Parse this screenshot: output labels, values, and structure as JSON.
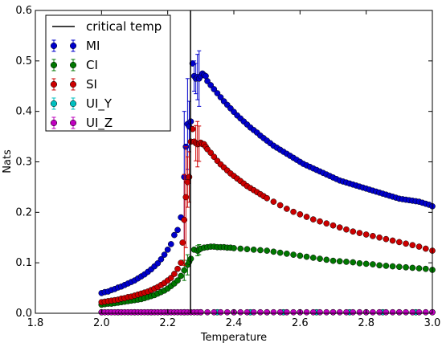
{
  "chart_data": {
    "type": "scatter",
    "title": "",
    "xlabel": "Temperature",
    "ylabel": "Nats",
    "xlim": [
      1.8,
      3.0
    ],
    "ylim": [
      0.0,
      0.6
    ],
    "xticks": [
      "1.8",
      "2.0",
      "2.2",
      "2.4",
      "2.6",
      "2.8",
      "3.0"
    ],
    "yticks": [
      "0.0",
      "0.1",
      "0.2",
      "0.3",
      "0.4",
      "0.5",
      "0.6"
    ],
    "legend_position": "top-left",
    "grid": false,
    "critical_line": {
      "name": "critical temp",
      "x": 2.269,
      "color": "#000000"
    },
    "series": [
      {
        "name": "MI",
        "color": "#0000cc",
        "marker": "circle",
        "errorbars": true,
        "x": [
          2.0,
          2.01,
          2.02,
          2.03,
          2.04,
          2.05,
          2.06,
          2.07,
          2.08,
          2.09,
          2.1,
          2.11,
          2.12,
          2.13,
          2.14,
          2.15,
          2.16,
          2.17,
          2.18,
          2.19,
          2.2,
          2.21,
          2.22,
          2.23,
          2.24,
          2.25,
          2.255,
          2.26,
          2.265,
          2.27,
          2.275,
          2.28,
          2.285,
          2.29,
          2.295,
          2.3,
          2.305,
          2.31,
          2.315,
          2.32,
          2.33,
          2.34,
          2.35,
          2.36,
          2.37,
          2.38,
          2.39,
          2.4,
          2.41,
          2.42,
          2.43,
          2.44,
          2.45,
          2.46,
          2.47,
          2.48,
          2.49,
          2.5,
          2.51,
          2.52,
          2.53,
          2.54,
          2.55,
          2.56,
          2.57,
          2.58,
          2.59,
          2.6,
          2.61,
          2.62,
          2.63,
          2.64,
          2.65,
          2.66,
          2.67,
          2.68,
          2.69,
          2.7,
          2.71,
          2.72,
          2.73,
          2.74,
          2.75,
          2.76,
          2.77,
          2.78,
          2.79,
          2.8,
          2.81,
          2.82,
          2.83,
          2.84,
          2.85,
          2.86,
          2.87,
          2.88,
          2.89,
          2.9,
          2.91,
          2.92,
          2.93,
          2.94,
          2.95,
          2.96,
          2.97,
          2.98,
          2.99,
          3.0
        ],
        "y": [
          0.04,
          0.042,
          0.043,
          0.046,
          0.048,
          0.051,
          0.053,
          0.056,
          0.059,
          0.062,
          0.065,
          0.069,
          0.073,
          0.077,
          0.082,
          0.087,
          0.093,
          0.099,
          0.107,
          0.116,
          0.126,
          0.137,
          0.155,
          0.165,
          0.19,
          0.27,
          0.33,
          0.375,
          0.37,
          0.38,
          0.495,
          0.47,
          0.465,
          0.468,
          0.465,
          0.47,
          0.475,
          0.472,
          0.47,
          0.46,
          0.452,
          0.444,
          0.436,
          0.428,
          0.42,
          0.413,
          0.406,
          0.399,
          0.392,
          0.386,
          0.38,
          0.374,
          0.368,
          0.363,
          0.358,
          0.352,
          0.347,
          0.342,
          0.337,
          0.332,
          0.328,
          0.324,
          0.32,
          0.316,
          0.312,
          0.308,
          0.304,
          0.3,
          0.296,
          0.293,
          0.29,
          0.287,
          0.284,
          0.281,
          0.278,
          0.275,
          0.272,
          0.269,
          0.266,
          0.263,
          0.261,
          0.259,
          0.257,
          0.255,
          0.253,
          0.251,
          0.249,
          0.247,
          0.245,
          0.243,
          0.241,
          0.239,
          0.237,
          0.235,
          0.233,
          0.231,
          0.229,
          0.227,
          0.226,
          0.225,
          0.224,
          0.223,
          0.222,
          0.221,
          0.219,
          0.217,
          0.215,
          0.212
        ],
        "err": {
          "2.25": 0.13,
          "2.26": 0.09,
          "2.265": 0.05,
          "2.28": 0.03,
          "2.285": 0.03,
          "2.29": 0.045,
          "2.295": 0.055,
          "2.30": 0.03
        }
      },
      {
        "name": "CI",
        "color": "#007700",
        "marker": "circle",
        "errorbars": true,
        "x": [
          2.0,
          2.01,
          2.02,
          2.03,
          2.04,
          2.05,
          2.06,
          2.07,
          2.08,
          2.09,
          2.1,
          2.11,
          2.12,
          2.13,
          2.14,
          2.15,
          2.16,
          2.17,
          2.18,
          2.19,
          2.2,
          2.21,
          2.22,
          2.23,
          2.24,
          2.25,
          2.26,
          2.265,
          2.27,
          2.28,
          2.29,
          2.295,
          2.3,
          2.31,
          2.32,
          2.33,
          2.34,
          2.35,
          2.36,
          2.37,
          2.38,
          2.39,
          2.4,
          2.42,
          2.44,
          2.46,
          2.48,
          2.5,
          2.52,
          2.54,
          2.56,
          2.58,
          2.6,
          2.62,
          2.64,
          2.66,
          2.68,
          2.7,
          2.72,
          2.74,
          2.76,
          2.78,
          2.8,
          2.82,
          2.84,
          2.86,
          2.88,
          2.9,
          2.92,
          2.94,
          2.96,
          2.98,
          3.0
        ],
        "y": [
          0.017,
          0.018,
          0.019,
          0.019,
          0.02,
          0.021,
          0.022,
          0.023,
          0.024,
          0.025,
          0.026,
          0.027,
          0.028,
          0.03,
          0.032,
          0.034,
          0.036,
          0.039,
          0.042,
          0.045,
          0.049,
          0.054,
          0.059,
          0.065,
          0.074,
          0.085,
          0.096,
          0.102,
          0.108,
          0.126,
          0.124,
          0.126,
          0.128,
          0.13,
          0.131,
          0.132,
          0.132,
          0.131,
          0.131,
          0.131,
          0.13,
          0.13,
          0.129,
          0.128,
          0.127,
          0.126,
          0.125,
          0.124,
          0.122,
          0.12,
          0.118,
          0.116,
          0.114,
          0.112,
          0.11,
          0.108,
          0.106,
          0.104,
          0.103,
          0.102,
          0.101,
          0.099,
          0.098,
          0.097,
          0.095,
          0.094,
          0.093,
          0.092,
          0.091,
          0.09,
          0.089,
          0.088,
          0.086
        ],
        "err": {
          "2.25": 0.02,
          "2.26": 0.02,
          "2.29": 0.01,
          "2.295": 0.01
        }
      },
      {
        "name": "SI",
        "color": "#cc0000",
        "marker": "circle",
        "errorbars": true,
        "x": [
          2.0,
          2.01,
          2.02,
          2.03,
          2.04,
          2.05,
          2.06,
          2.07,
          2.08,
          2.09,
          2.1,
          2.11,
          2.12,
          2.13,
          2.14,
          2.15,
          2.16,
          2.17,
          2.18,
          2.19,
          2.2,
          2.21,
          2.22,
          2.23,
          2.24,
          2.245,
          2.25,
          2.255,
          2.26,
          2.265,
          2.27,
          2.275,
          2.28,
          2.285,
          2.29,
          2.295,
          2.3,
          2.305,
          2.31,
          2.315,
          2.32,
          2.33,
          2.34,
          2.35,
          2.36,
          2.37,
          2.38,
          2.39,
          2.4,
          2.41,
          2.42,
          2.43,
          2.44,
          2.45,
          2.46,
          2.47,
          2.48,
          2.49,
          2.5,
          2.52,
          2.54,
          2.56,
          2.58,
          2.6,
          2.62,
          2.64,
          2.66,
          2.68,
          2.7,
          2.72,
          2.74,
          2.76,
          2.78,
          2.8,
          2.82,
          2.84,
          2.86,
          2.88,
          2.9,
          2.92,
          2.94,
          2.96,
          2.98,
          3.0
        ],
        "y": [
          0.022,
          0.023,
          0.024,
          0.025,
          0.026,
          0.027,
          0.029,
          0.03,
          0.032,
          0.033,
          0.035,
          0.037,
          0.039,
          0.041,
          0.043,
          0.046,
          0.049,
          0.052,
          0.056,
          0.06,
          0.065,
          0.07,
          0.078,
          0.088,
          0.1,
          0.14,
          0.185,
          0.23,
          0.26,
          0.27,
          0.34,
          0.365,
          0.34,
          0.337,
          0.335,
          0.336,
          0.338,
          0.335,
          0.335,
          0.33,
          0.325,
          0.318,
          0.31,
          0.302,
          0.295,
          0.289,
          0.283,
          0.277,
          0.272,
          0.267,
          0.262,
          0.257,
          0.252,
          0.248,
          0.244,
          0.24,
          0.236,
          0.232,
          0.228,
          0.221,
          0.214,
          0.207,
          0.201,
          0.196,
          0.191,
          0.186,
          0.182,
          0.178,
          0.174,
          0.17,
          0.166,
          0.162,
          0.159,
          0.156,
          0.153,
          0.15,
          0.147,
          0.144,
          0.141,
          0.138,
          0.135,
          0.132,
          0.128,
          0.124
        ],
        "err": {
          "2.25": 0.09,
          "2.255": 0.1,
          "2.26": 0.05,
          "2.265": 0.05,
          "2.285": 0.035,
          "2.29": 0.045,
          "2.295": 0.035
        }
      },
      {
        "name": "UI_Y",
        "color": "#00bfbf",
        "marker": "circle",
        "errorbars": true,
        "x": [
          2.0,
          2.05,
          2.1,
          2.15,
          2.2,
          2.25,
          2.3,
          2.35,
          2.4,
          2.45,
          2.5,
          2.55,
          2.6,
          2.65,
          2.7,
          2.75,
          2.8,
          2.85,
          2.9,
          2.95,
          3.0
        ],
        "y": [
          0.002,
          0.002,
          0.002,
          0.002,
          0.002,
          0.002,
          0.002,
          0.002,
          0.002,
          0.002,
          0.002,
          0.002,
          0.002,
          0.002,
          0.002,
          0.002,
          0.002,
          0.002,
          0.002,
          0.002,
          0.002
        ]
      },
      {
        "name": "UI_Z",
        "color": "#bf00bf",
        "marker": "circle",
        "errorbars": true,
        "x": [
          2.0,
          2.01,
          2.02,
          2.03,
          2.04,
          2.05,
          2.06,
          2.07,
          2.08,
          2.09,
          2.1,
          2.11,
          2.12,
          2.13,
          2.14,
          2.15,
          2.16,
          2.17,
          2.18,
          2.19,
          2.2,
          2.21,
          2.22,
          2.23,
          2.24,
          2.25,
          2.26,
          2.27,
          2.28,
          2.29,
          2.3,
          2.32,
          2.34,
          2.36,
          2.38,
          2.4,
          2.42,
          2.44,
          2.46,
          2.48,
          2.5,
          2.52,
          2.54,
          2.56,
          2.58,
          2.6,
          2.62,
          2.64,
          2.66,
          2.68,
          2.7,
          2.72,
          2.74,
          2.76,
          2.78,
          2.8,
          2.82,
          2.84,
          2.86,
          2.88,
          2.9,
          2.92,
          2.94,
          2.96,
          2.98,
          3.0
        ],
        "y": [
          0.002,
          0.002,
          0.002,
          0.002,
          0.002,
          0.002,
          0.002,
          0.002,
          0.002,
          0.002,
          0.002,
          0.002,
          0.002,
          0.002,
          0.002,
          0.002,
          0.002,
          0.002,
          0.002,
          0.002,
          0.002,
          0.002,
          0.002,
          0.002,
          0.002,
          0.002,
          0.002,
          0.002,
          0.002,
          0.002,
          0.002,
          0.002,
          0.002,
          0.002,
          0.002,
          0.002,
          0.002,
          0.002,
          0.002,
          0.002,
          0.002,
          0.002,
          0.002,
          0.002,
          0.002,
          0.002,
          0.002,
          0.002,
          0.002,
          0.002,
          0.002,
          0.002,
          0.002,
          0.002,
          0.002,
          0.002,
          0.002,
          0.002,
          0.002,
          0.002,
          0.002,
          0.002,
          0.002,
          0.002,
          0.002,
          0.002
        ]
      }
    ]
  }
}
